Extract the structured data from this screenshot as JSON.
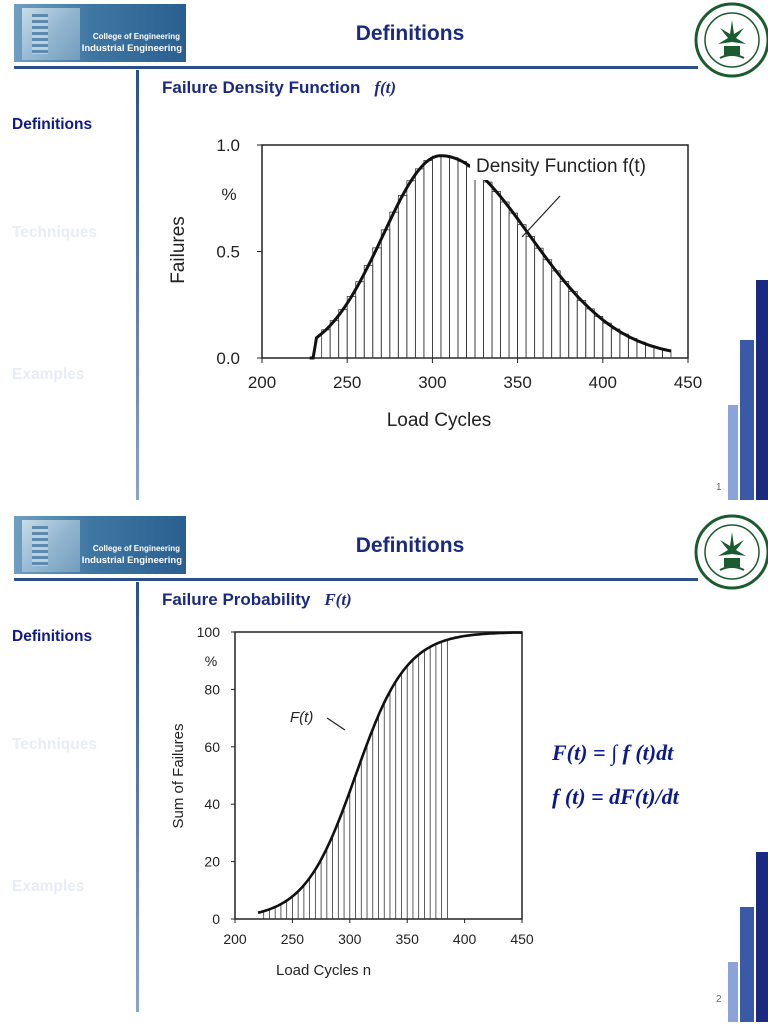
{
  "brand": {
    "line1": "College of Engineering",
    "line2": "Industrial Engineering"
  },
  "nav": {
    "definitions": "Definitions",
    "techniques": "Techniques",
    "examples": "Examples"
  },
  "slide1": {
    "title": "Definitions",
    "subtitle": "Failure Density Function",
    "subtitle_fx": "f(t)",
    "page": "1",
    "chart_data": {
      "type": "bar",
      "xlabel": "Load Cycles",
      "ylabel": "Failures",
      "y_unit": "%",
      "annotation": "Density Function f(t)",
      "xlim": [
        200,
        450
      ],
      "ylim": [
        0,
        1.0
      ],
      "xticks": [
        "200",
        "250",
        "300",
        "350",
        "400",
        "450"
      ],
      "yticks": [
        "0.0",
        "0.5",
        "1.0"
      ]
    }
  },
  "slide2": {
    "title": "Definitions",
    "subtitle": "Failure Probability",
    "subtitle_fx": "F(t)",
    "page": "2",
    "formula1": "F(t) = ∫ f (t)dt",
    "formula2": "f (t) = dF(t)/dt",
    "chart_data": {
      "type": "area",
      "xlabel": "Load Cycles n",
      "ylabel": "Sum of Failures",
      "y_unit": "%",
      "annotation": "F(t)",
      "xlim": [
        200,
        450
      ],
      "ylim": [
        0,
        100
      ],
      "xticks": [
        "200",
        "250",
        "300",
        "350",
        "400",
        "450"
      ],
      "yticks": [
        "0",
        "20",
        "40",
        "60",
        "80",
        "100"
      ]
    }
  }
}
